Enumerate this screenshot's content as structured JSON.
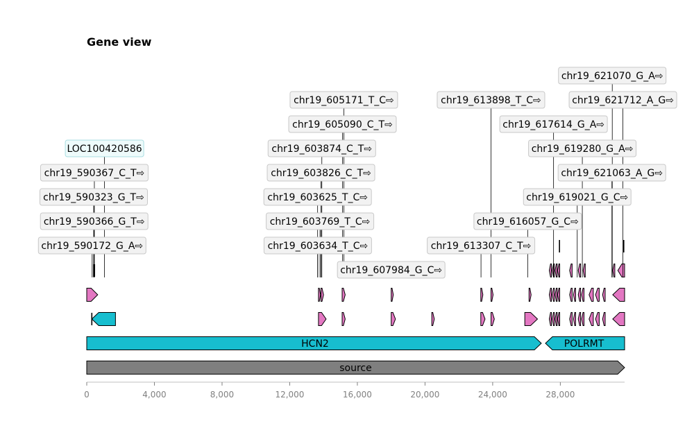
{
  "title": "Gene view",
  "colors": {
    "gene": "#17becf",
    "source": "#7f7f7f",
    "exon": "#e377c2",
    "label_box_fill": "#f2f2f2",
    "label_box_stroke": "#c8c8c8",
    "gene_label_fill": "#eefbfb",
    "gene_label_stroke": "#a8dde1",
    "axis_text": "#808080"
  },
  "chart_data": {
    "type": "genome_track",
    "xlim": [
      0,
      31800
    ],
    "x_ticks": [
      0,
      4000,
      8000,
      12000,
      16000,
      20000,
      24000,
      28000
    ],
    "x_tick_labels": [
      "0",
      "4,000",
      "8,000",
      "12,000",
      "16,000",
      "20,000",
      "24,000",
      "28,000"
    ],
    "features": [
      {
        "label": "source",
        "start": 0,
        "end": 31800,
        "strand": "+",
        "color": "#7f7f7f",
        "track": 0
      },
      {
        "label": "HCN2",
        "start": 0,
        "end": 27000,
        "strand": "+",
        "color": "#17becf",
        "track": 1
      },
      {
        "label": "POLRMT",
        "start": 27000,
        "end": 31800,
        "strand": "-",
        "color": "#17becf",
        "track": 1
      }
    ],
    "transcripts": [
      {
        "track": 2,
        "parts": [
          {
            "kind": "cds",
            "start": 300,
            "end": 1700,
            "strand": "-",
            "color": "#17becf"
          },
          {
            "kind": "mark",
            "pos": 300
          },
          {
            "kind": "exon",
            "start": 13700,
            "end": 14150,
            "strand": "+"
          },
          {
            "kind": "exon",
            "start": 15100,
            "end": 15280,
            "strand": "+"
          },
          {
            "kind": "exon",
            "start": 18000,
            "end": 18250,
            "strand": "+"
          },
          {
            "kind": "exon",
            "start": 20400,
            "end": 20550,
            "strand": "+"
          },
          {
            "kind": "exon",
            "start": 23300,
            "end": 23550,
            "strand": "+"
          },
          {
            "kind": "exon",
            "start": 23900,
            "end": 24100,
            "strand": "+"
          },
          {
            "kind": "exon",
            "start": 25900,
            "end": 26650,
            "strand": "+"
          },
          {
            "kind": "exon",
            "start": 27350,
            "end": 27470,
            "strand": "-"
          },
          {
            "kind": "exon",
            "start": 27520,
            "end": 27640,
            "strand": "-"
          },
          {
            "kind": "exon",
            "start": 27690,
            "end": 27800,
            "strand": "-"
          },
          {
            "kind": "exon",
            "start": 27840,
            "end": 27950,
            "strand": "-"
          },
          {
            "kind": "exon",
            "start": 28550,
            "end": 28700,
            "strand": "-"
          },
          {
            "kind": "exon",
            "start": 28780,
            "end": 28900,
            "strand": "-"
          },
          {
            "kind": "exon",
            "start": 29060,
            "end": 29200,
            "strand": "-"
          },
          {
            "kind": "exon",
            "start": 29260,
            "end": 29400,
            "strand": "-"
          },
          {
            "kind": "exon",
            "start": 29700,
            "end": 29950,
            "strand": "-"
          },
          {
            "kind": "exon",
            "start": 30080,
            "end": 30300,
            "strand": "-"
          },
          {
            "kind": "exon",
            "start": 30500,
            "end": 30650,
            "strand": "-"
          },
          {
            "kind": "exon",
            "start": 31100,
            "end": 31800,
            "strand": "-"
          }
        ]
      },
      {
        "track": 3,
        "parts": [
          {
            "kind": "exon",
            "start": 0,
            "end": 650,
            "strand": "+"
          },
          {
            "kind": "exon",
            "start": 13700,
            "end": 13800,
            "strand": "+"
          },
          {
            "kind": "exon",
            "start": 13850,
            "end": 14000,
            "strand": "+"
          },
          {
            "kind": "exon",
            "start": 15100,
            "end": 15280,
            "strand": "+"
          },
          {
            "kind": "exon",
            "start": 18000,
            "end": 18100,
            "strand": "+"
          },
          {
            "kind": "exon",
            "start": 23300,
            "end": 23420,
            "strand": "+"
          },
          {
            "kind": "exon",
            "start": 23900,
            "end": 24020,
            "strand": "+"
          },
          {
            "kind": "exon",
            "start": 26150,
            "end": 26270,
            "strand": "+"
          },
          {
            "kind": "exon",
            "start": 27350,
            "end": 27470,
            "strand": "-"
          },
          {
            "kind": "exon",
            "start": 27520,
            "end": 27640,
            "strand": "-"
          },
          {
            "kind": "exon",
            "start": 27690,
            "end": 27800,
            "strand": "-"
          },
          {
            "kind": "exon",
            "start": 27840,
            "end": 27950,
            "strand": "-"
          },
          {
            "kind": "exon",
            "start": 28550,
            "end": 28700,
            "strand": "-"
          },
          {
            "kind": "exon",
            "start": 28780,
            "end": 28900,
            "strand": "-"
          },
          {
            "kind": "exon",
            "start": 29060,
            "end": 29200,
            "strand": "-"
          },
          {
            "kind": "exon",
            "start": 29260,
            "end": 29400,
            "strand": "-"
          },
          {
            "kind": "exon",
            "start": 29700,
            "end": 29950,
            "strand": "-"
          },
          {
            "kind": "exon",
            "start": 30080,
            "end": 30300,
            "strand": "-"
          },
          {
            "kind": "exon",
            "start": 30500,
            "end": 30650,
            "strand": "-"
          },
          {
            "kind": "exon",
            "start": 31100,
            "end": 31800,
            "strand": "-"
          }
        ]
      },
      {
        "track": 4,
        "parts": [
          {
            "kind": "mark",
            "pos": 410
          },
          {
            "kind": "mark",
            "pos": 460
          },
          {
            "kind": "exon",
            "start": 27350,
            "end": 27470,
            "strand": "-"
          },
          {
            "kind": "exon",
            "start": 27520,
            "end": 27640,
            "strand": "-"
          },
          {
            "kind": "exon",
            "start": 27690,
            "end": 27800,
            "strand": "-"
          },
          {
            "kind": "exon",
            "start": 27840,
            "end": 27950,
            "strand": "-"
          },
          {
            "kind": "exon",
            "start": 28550,
            "end": 28700,
            "strand": "-"
          },
          {
            "kind": "exon",
            "start": 29060,
            "end": 29200,
            "strand": "-"
          },
          {
            "kind": "exon",
            "start": 29350,
            "end": 29450,
            "strand": "-"
          },
          {
            "kind": "exon",
            "start": 31100,
            "end": 31200,
            "strand": "-"
          },
          {
            "kind": "exon",
            "start": 31400,
            "end": 31800,
            "strand": "-"
          }
        ]
      },
      {
        "track": 5,
        "parts": [
          {
            "kind": "mark",
            "pos": 27950
          },
          {
            "kind": "mark",
            "pos": 31750
          }
        ]
      }
    ],
    "labels": [
      {
        "text": "LOC100420586",
        "pos": 1050,
        "level": 5,
        "style": "gene"
      },
      {
        "text": "chr19_590367_C_T⇨",
        "pos": 450,
        "level": 4
      },
      {
        "text": "chr19_590323_G_T⇨",
        "pos": 410,
        "level": 3
      },
      {
        "text": "chr19_590366_G_T⇨",
        "pos": 440,
        "level": 2
      },
      {
        "text": "chr19_590172_G_A⇨",
        "pos": 320,
        "level": 1
      },
      {
        "text": "chr19_605171_T_C⇨",
        "pos": 15200,
        "level": 7
      },
      {
        "text": "chr19_605090_C_T⇨",
        "pos": 15120,
        "level": 6
      },
      {
        "text": "chr19_603874_C_T⇨",
        "pos": 13900,
        "level": 5
      },
      {
        "text": "chr19_603826_C_T⇨",
        "pos": 13850,
        "level": 4
      },
      {
        "text": "chr19_603625_T_C⇨",
        "pos": 13650,
        "level": 3
      },
      {
        "text": "chr19_603769_T_C⇨",
        "pos": 13790,
        "level": 2
      },
      {
        "text": "chr19_603634_T_C⇨",
        "pos": 13660,
        "level": 1
      },
      {
        "text": "chr19_607984_G_C⇨",
        "pos": 18000,
        "level": 0
      },
      {
        "text": "chr19_613898_T_C⇨",
        "pos": 23900,
        "level": 7
      },
      {
        "text": "chr19_613307_C_T⇨",
        "pos": 23310,
        "level": 1
      },
      {
        "text": "chr19_616057_G_C⇨",
        "pos": 26070,
        "level": 2
      },
      {
        "text": "chr19_617614_G_A⇨",
        "pos": 27600,
        "level": 6
      },
      {
        "text": "chr19_619021_G_C⇨",
        "pos": 29000,
        "level": 3
      },
      {
        "text": "chr19_619280_G_A⇨",
        "pos": 29300,
        "level": 5
      },
      {
        "text": "chr19_621063_A_G⇨",
        "pos": 31050,
        "level": 4
      },
      {
        "text": "chr19_621070_G_A⇨",
        "pos": 31070,
        "level": 8
      },
      {
        "text": "chr19_621712_A_G⇨",
        "pos": 31700,
        "level": 7
      }
    ]
  }
}
